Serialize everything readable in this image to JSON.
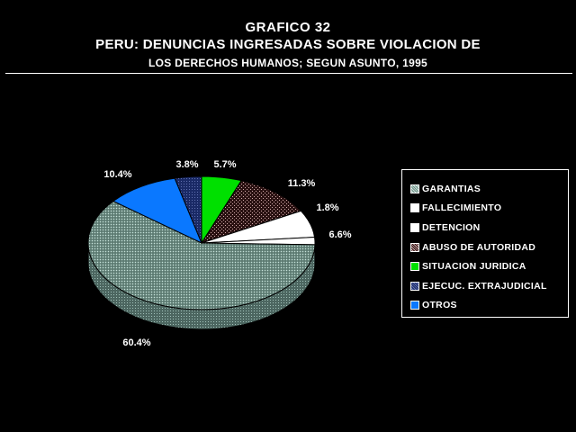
{
  "header": {
    "line1": "GRAFICO  32",
    "line2": "PERU: DENUNCIAS INGRESADAS SOBRE VIOLACION DE",
    "line3": "LOS DERECHOS HUMANOS; SEGUN ASUNTO, 1995"
  },
  "chart_data": {
    "type": "pie",
    "title": "PERU: DENUNCIAS INGRESADAS SOBRE VIOLACION DE LOS DERECHOS HUMANOS; SEGUN ASUNTO, 1995",
    "legend_position": "right",
    "slices": [
      {
        "name": "GARANTIAS",
        "value": 60.4,
        "label": "60.4%",
        "color": "#7a9a90",
        "pattern": "dotted"
      },
      {
        "name": "FALLECIMIENTO",
        "value": 1.8,
        "label": "1.8%",
        "color": "#ffffff",
        "pattern": "solid"
      },
      {
        "name": "DETENCION",
        "value": 6.6,
        "label": "6.6%",
        "color": "#ffffff",
        "pattern": "solid"
      },
      {
        "name": "ABUSO DE AUTORIDAD",
        "value": 11.3,
        "label": "11.3%",
        "color": "#3a2020",
        "pattern": "crosshatch"
      },
      {
        "name": "SITUACION JURIDICA",
        "value": 5.7,
        "label": "5.7%",
        "color": "#00e000",
        "pattern": "solid"
      },
      {
        "name": "EJECUC. EXTRAJUDICIAL",
        "value": 3.8,
        "label": "3.8%",
        "color": "#1c2e6e",
        "pattern": "dotted"
      },
      {
        "name": "OTROS",
        "value": 10.4,
        "label": "10.4%",
        "color": "#0a78ff",
        "pattern": "solid"
      }
    ]
  }
}
